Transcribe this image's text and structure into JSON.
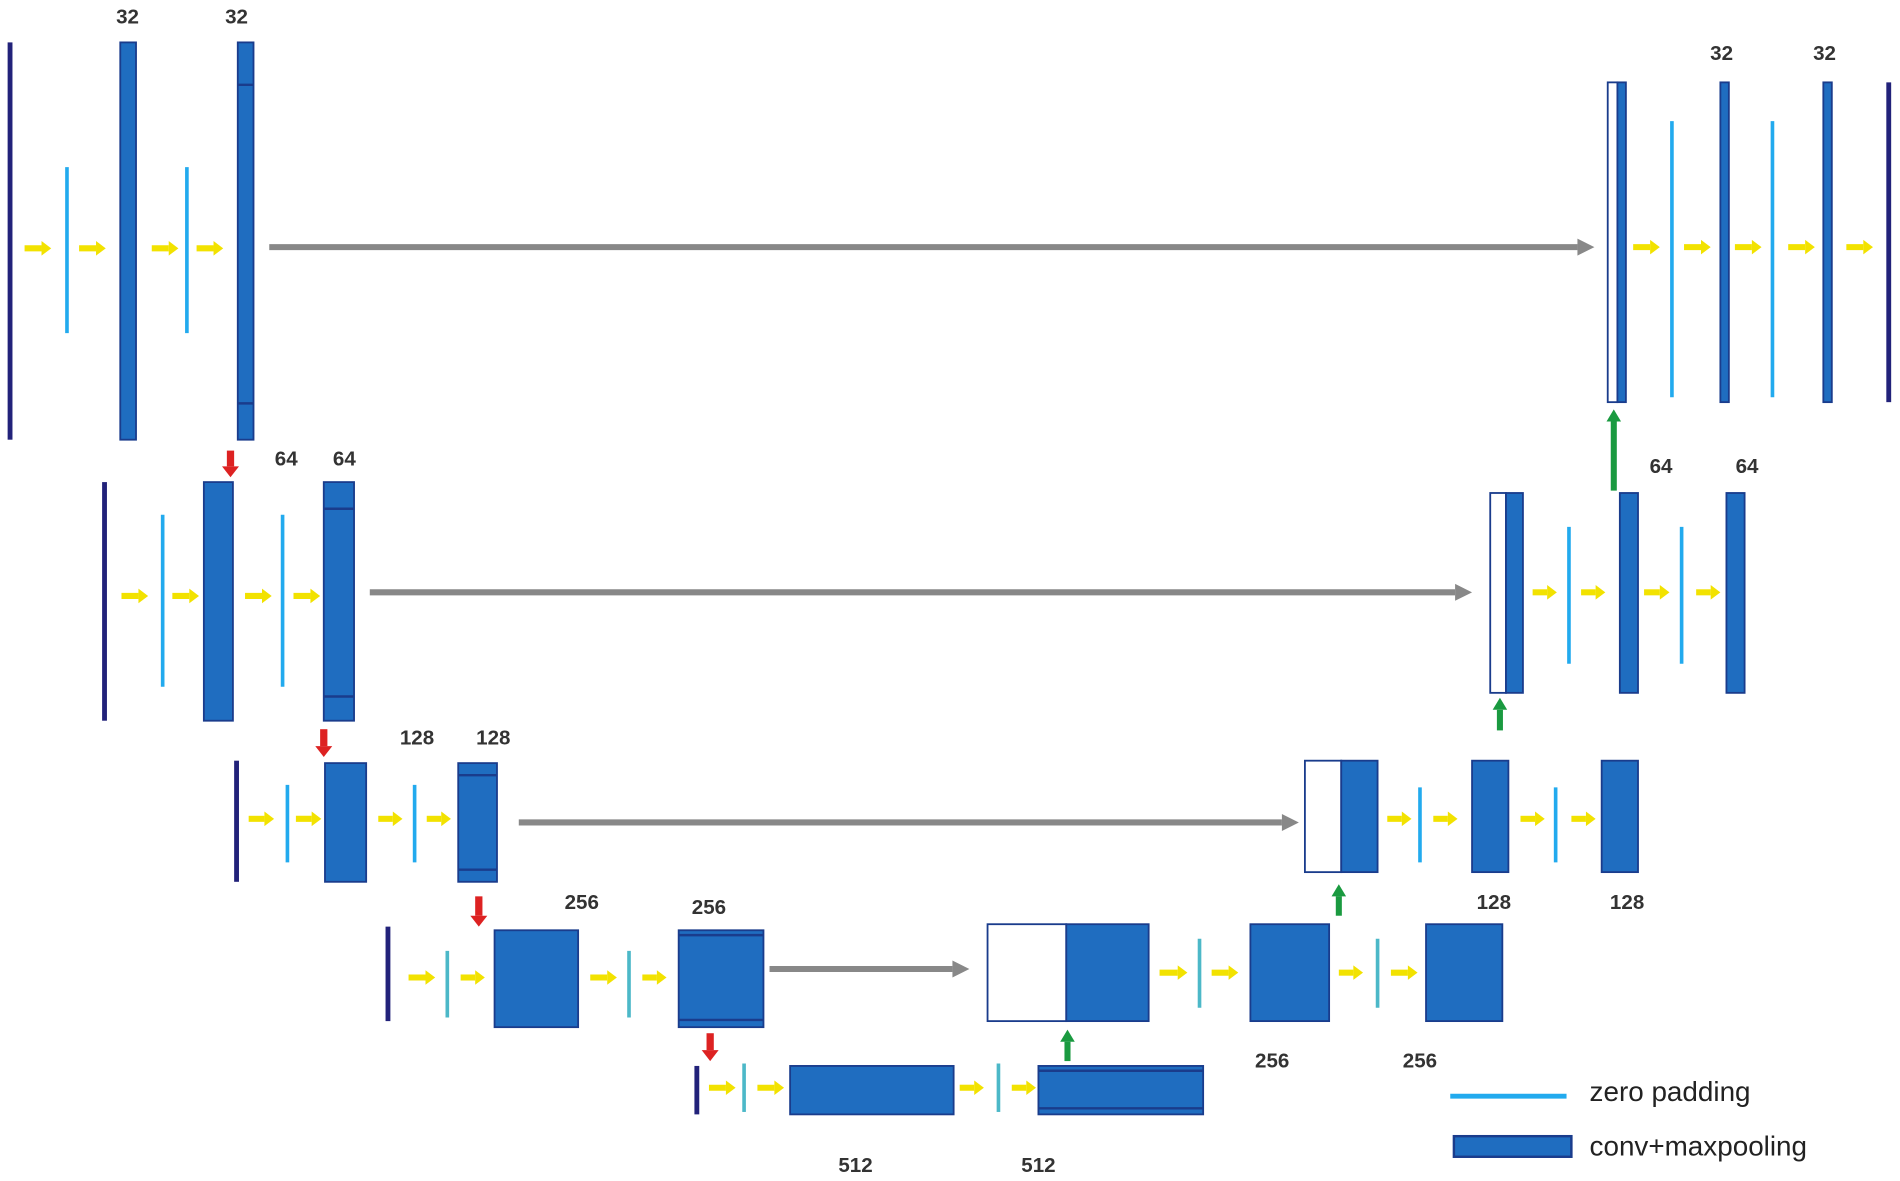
{
  "rows": [
    {
      "encoder_labels": [
        "32",
        "32"
      ],
      "decoder_labels": [
        "32",
        "32"
      ]
    },
    {
      "encoder_labels": [
        "64",
        "64"
      ],
      "decoder_labels": [
        "64",
        "64"
      ]
    },
    {
      "encoder_labels": [
        "128",
        "128"
      ],
      "decoder_labels": [
        "128",
        "128"
      ]
    },
    {
      "encoder_labels": [
        "256",
        "256"
      ],
      "decoder_labels": [
        "256",
        "256"
      ]
    },
    {
      "encoder_labels": [
        "512",
        "512"
      ]
    }
  ],
  "legend": {
    "zero_padding": "zero padding",
    "conv": "conv+maxpooling"
  }
}
